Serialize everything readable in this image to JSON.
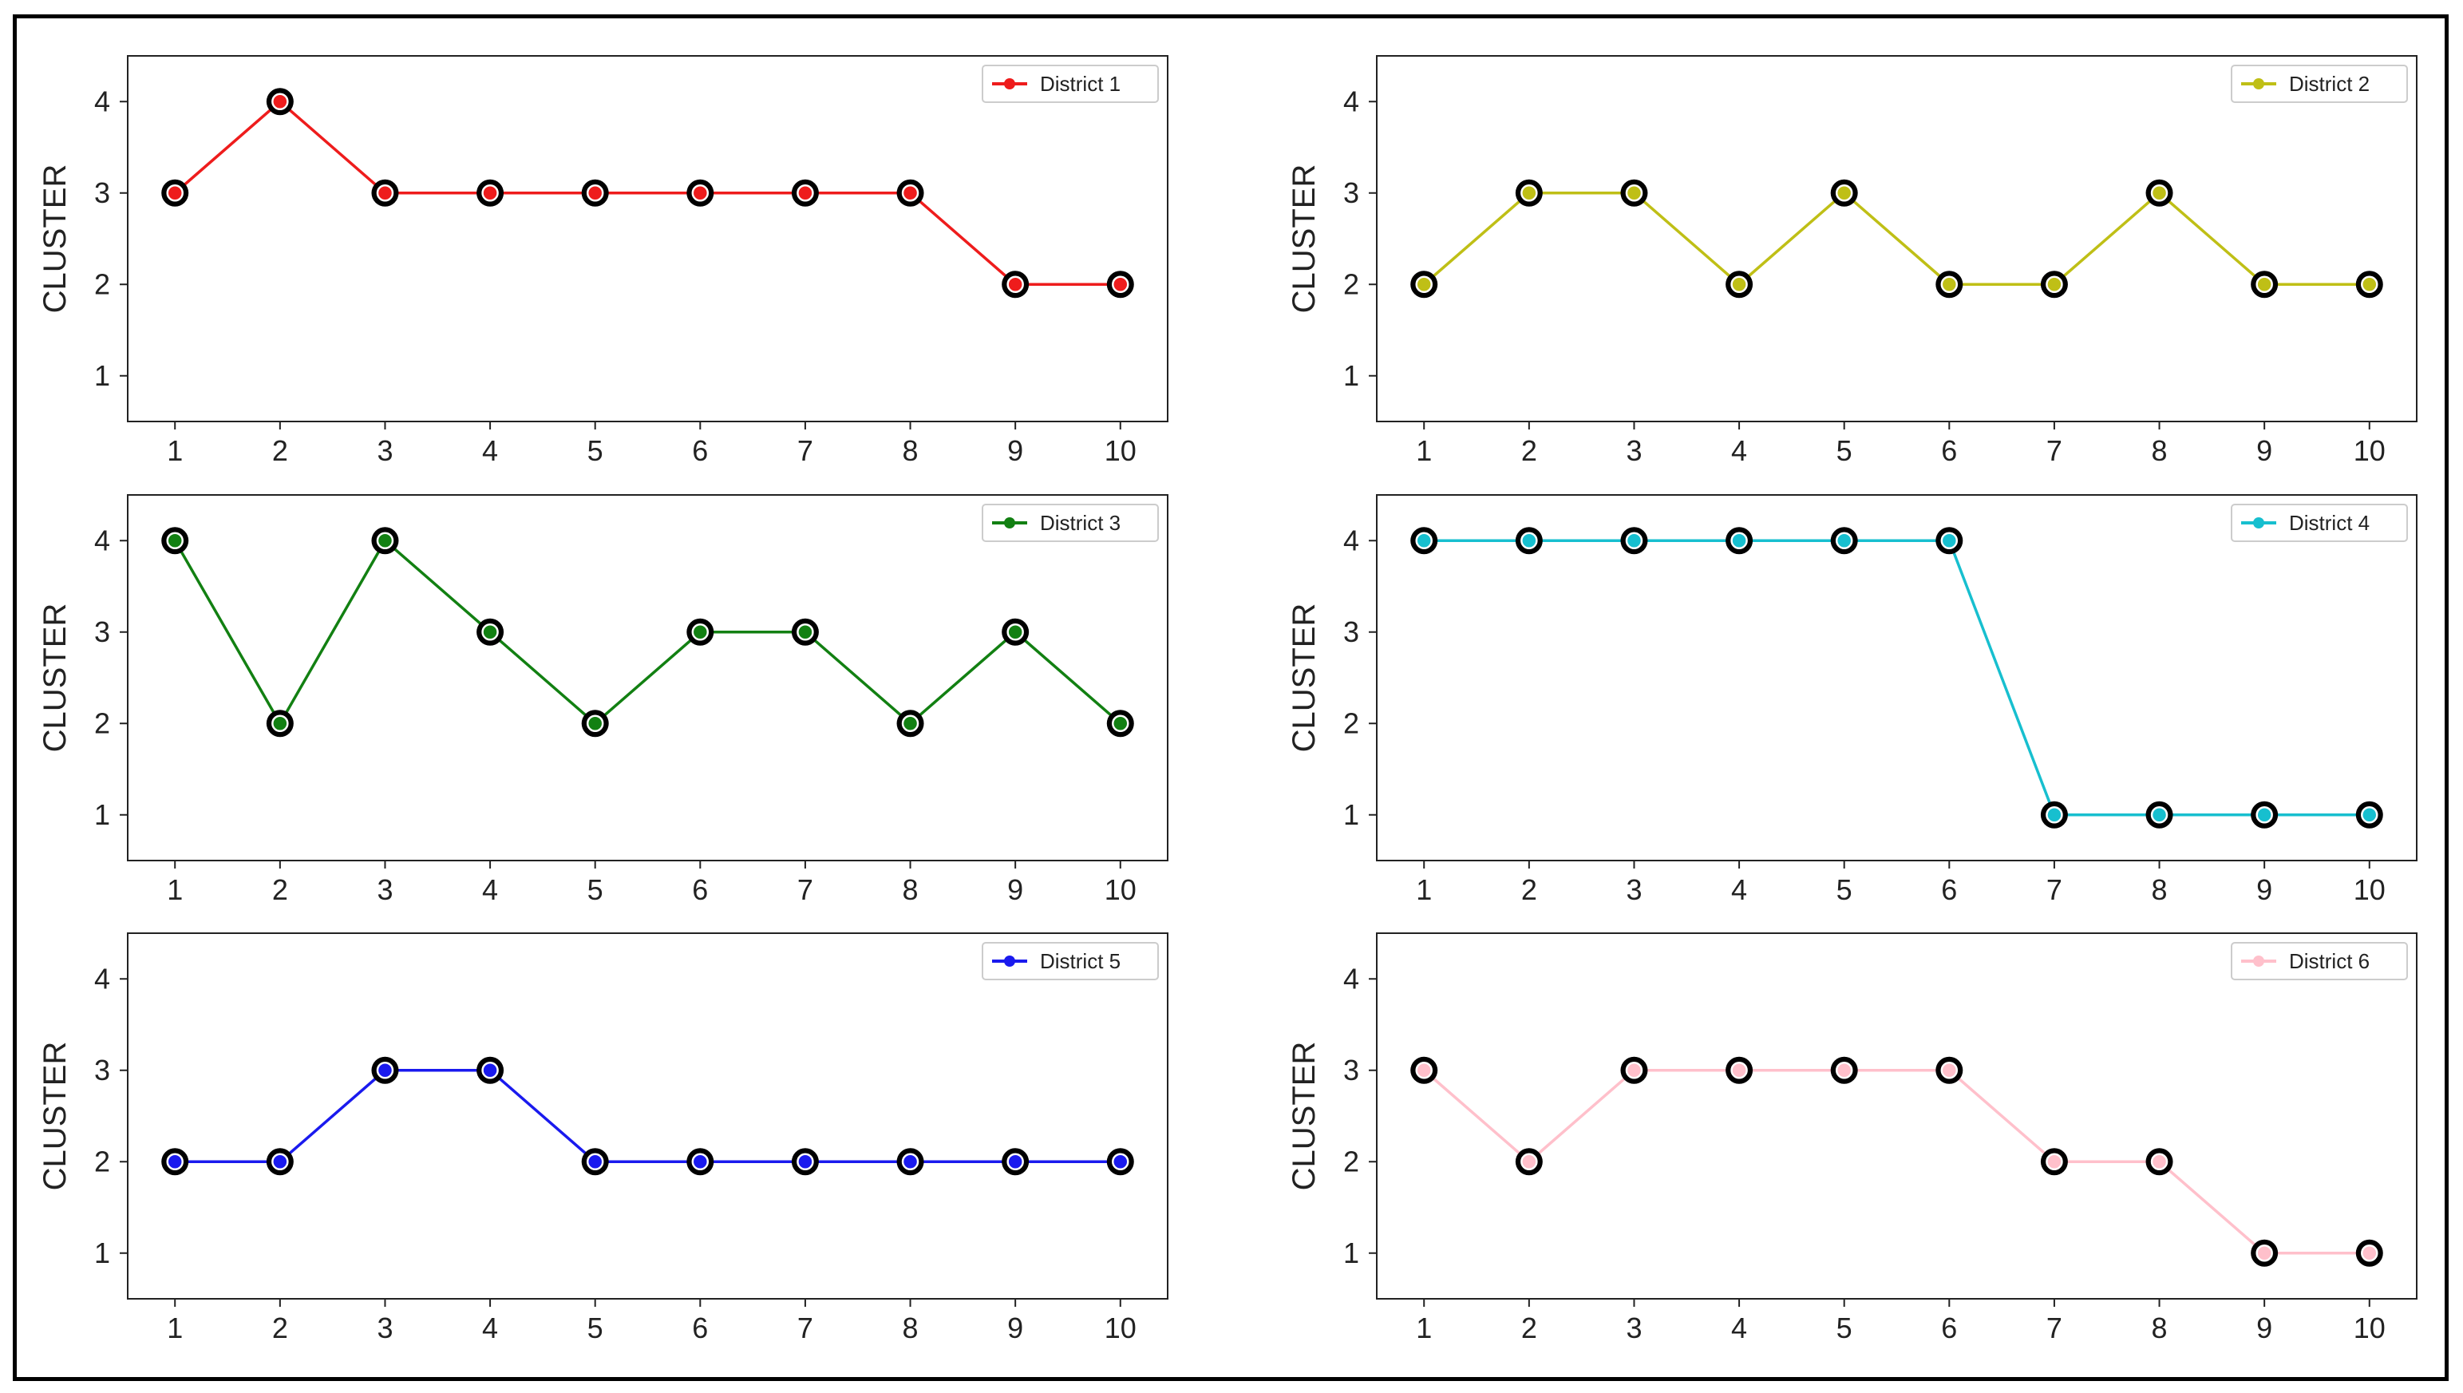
{
  "chart_data": [
    {
      "type": "line",
      "legend": "District 1",
      "color": "#ee1c1c",
      "x": [
        1,
        2,
        3,
        4,
        5,
        6,
        7,
        8,
        9,
        10
      ],
      "values": [
        3,
        4,
        3,
        3,
        3,
        3,
        3,
        3,
        2,
        2
      ],
      "ylabel": "CLUSTER",
      "xlim": [
        0.55,
        10.45
      ],
      "ylim": [
        0.5,
        4.5
      ],
      "yticks": [
        1,
        2,
        3,
        4
      ],
      "legend_position": "upper-right"
    },
    {
      "type": "line",
      "legend": "District 2",
      "color": "#bfbf16",
      "x": [
        1,
        2,
        3,
        4,
        5,
        6,
        7,
        8,
        9,
        10
      ],
      "values": [
        2,
        3,
        3,
        2,
        3,
        2,
        2,
        3,
        2,
        2
      ],
      "ylabel": "CLUSTER",
      "xlim": [
        0.55,
        10.45
      ],
      "ylim": [
        0.5,
        4.5
      ],
      "yticks": [
        1,
        2,
        3,
        4
      ],
      "legend_position": "upper-right"
    },
    {
      "type": "line",
      "legend": "District 3",
      "color": "#128012",
      "x": [
        1,
        2,
        3,
        4,
        5,
        6,
        7,
        8,
        9,
        10
      ],
      "values": [
        4,
        2,
        4,
        3,
        2,
        3,
        3,
        2,
        3,
        2
      ],
      "ylabel": "CLUSTER",
      "xlim": [
        0.55,
        10.45
      ],
      "ylim": [
        0.5,
        4.5
      ],
      "yticks": [
        1,
        2,
        3,
        4
      ],
      "legend_position": "upper-right"
    },
    {
      "type": "line",
      "legend": "District 4",
      "color": "#17bfcf",
      "x": [
        1,
        2,
        3,
        4,
        5,
        6,
        7,
        8,
        9,
        10
      ],
      "values": [
        4,
        4,
        4,
        4,
        4,
        4,
        1,
        1,
        1,
        1
      ],
      "ylabel": "CLUSTER",
      "xlim": [
        0.55,
        10.45
      ],
      "ylim": [
        0.5,
        4.5
      ],
      "yticks": [
        1,
        2,
        3,
        4
      ],
      "legend_position": "upper-right"
    },
    {
      "type": "line",
      "legend": "District 5",
      "color": "#1a1aee",
      "x": [
        1,
        2,
        3,
        4,
        5,
        6,
        7,
        8,
        9,
        10
      ],
      "values": [
        2,
        2,
        3,
        3,
        2,
        2,
        2,
        2,
        2,
        2
      ],
      "ylabel": "CLUSTER",
      "xlim": [
        0.55,
        10.45
      ],
      "ylim": [
        0.5,
        4.5
      ],
      "yticks": [
        1,
        2,
        3,
        4
      ],
      "legend_position": "upper-right"
    },
    {
      "type": "line",
      "legend": "District 6",
      "color": "#ffc0cb",
      "x": [
        1,
        2,
        3,
        4,
        5,
        6,
        7,
        8,
        9,
        10
      ],
      "values": [
        3,
        2,
        3,
        3,
        3,
        3,
        2,
        2,
        1,
        1
      ],
      "ylabel": "CLUSTER",
      "xlim": [
        0.55,
        10.45
      ],
      "ylim": [
        0.5,
        4.5
      ],
      "yticks": [
        1,
        2,
        3,
        4
      ],
      "legend_position": "upper-right"
    }
  ]
}
